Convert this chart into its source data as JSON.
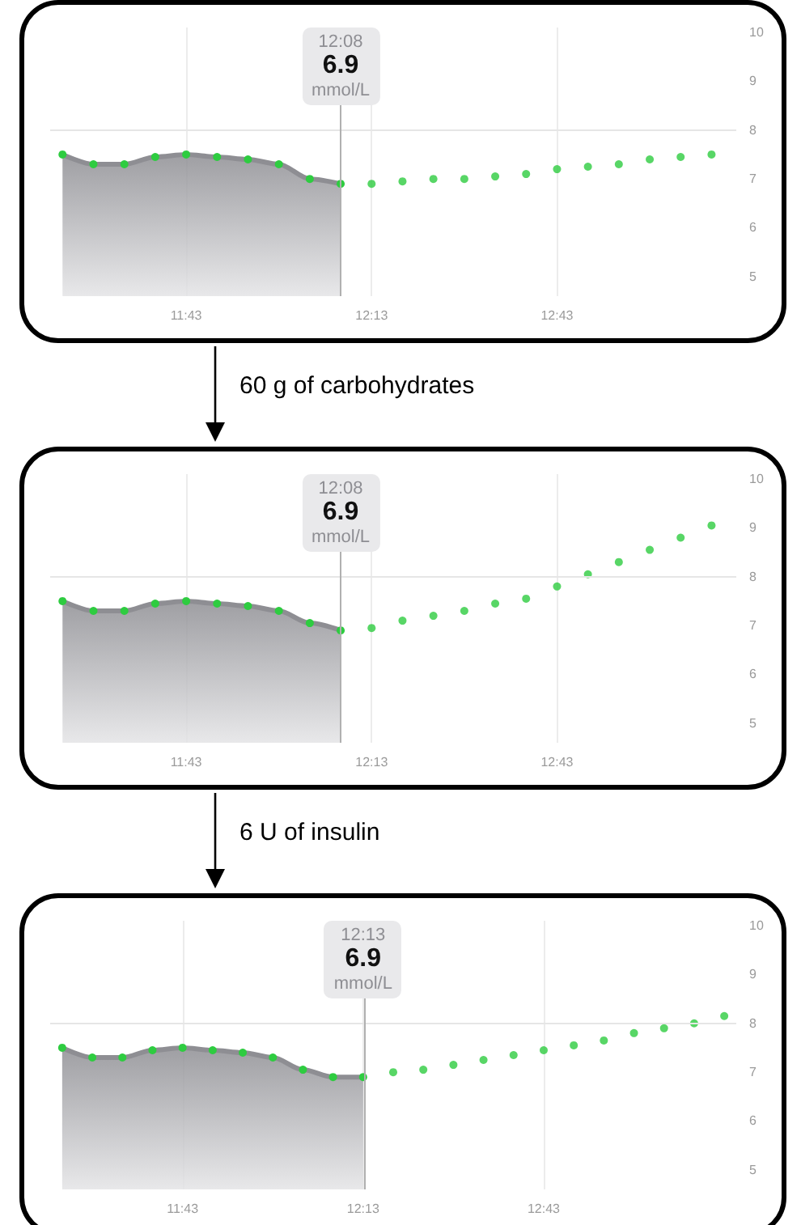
{
  "chart_data": [
    {
      "type": "area",
      "xlim": [
        11.35,
        13.2
      ],
      "ylim": [
        4.6,
        10.1
      ],
      "xticks": [
        {
          "value": 11.7167,
          "label": "11:43"
        },
        {
          "value": 12.2167,
          "label": "12:13"
        },
        {
          "value": 12.7167,
          "label": "12:43"
        }
      ],
      "yticks": [
        5,
        6,
        7,
        8,
        9,
        10
      ],
      "grid": "x",
      "marker": "circle",
      "series": [
        {
          "color": "#8e8e93",
          "x": [
            11.3833,
            11.4667,
            11.55,
            11.6333,
            11.7167,
            11.8,
            11.8833,
            11.9667,
            12.05,
            12.1333
          ],
          "values": [
            7.5,
            7.3,
            7.3,
            7.45,
            7.5,
            7.45,
            7.4,
            7.3,
            7.0,
            6.9
          ],
          "colors": [
            "#2ecc40",
            "#2ecc40",
            "#2ecc40",
            "#2ecc40",
            "#2ecc40",
            "#2ecc40",
            "#2ecc40",
            "#2ecc40",
            "#2ecc40",
            "#2ecc40"
          ]
        },
        {
          "type": "scatter",
          "color": "#2ecc40",
          "x": [
            12.2167,
            12.3,
            12.3833,
            12.4667,
            12.55,
            12.6333,
            12.7167,
            12.8,
            12.8833,
            12.9667,
            13.05,
            13.1333
          ],
          "values": [
            6.9,
            6.95,
            7.0,
            7.0,
            7.05,
            7.1,
            7.2,
            7.25,
            7.3,
            7.4,
            7.45,
            7.5
          ]
        }
      ],
      "ref_lines": [
        {
          "axis": "y",
          "value": 8,
          "color": "#e6e6e6"
        },
        {
          "axis": "x",
          "value": 12.1333,
          "color": "#b0b0b0"
        }
      ],
      "annotations": [
        "12:08\n6.9\nmmol/L",
        "60 g of carbohydrates"
      ]
    },
    {
      "type": "area",
      "xlim": [
        11.35,
        13.2
      ],
      "ylim": [
        4.6,
        10.1
      ],
      "xticks": [
        {
          "value": 11.7167,
          "label": "11:43"
        },
        {
          "value": 12.2167,
          "label": "12:13"
        },
        {
          "value": 12.7167,
          "label": "12:43"
        }
      ],
      "yticks": [
        5,
        6,
        7,
        8,
        9,
        10
      ],
      "grid": "x",
      "marker": "circle",
      "series": [
        {
          "color": "#8e8e93",
          "x": [
            11.3833,
            11.4667,
            11.55,
            11.6333,
            11.7167,
            11.8,
            11.8833,
            11.9667,
            12.05,
            12.1333
          ],
          "values": [
            7.5,
            7.3,
            7.3,
            7.45,
            7.5,
            7.45,
            7.4,
            7.3,
            7.05,
            6.9
          ],
          "colors": [
            "#2ecc40",
            "#2ecc40",
            "#2ecc40",
            "#2ecc40",
            "#2ecc40",
            "#2ecc40",
            "#2ecc40",
            "#2ecc40",
            "#2ecc40",
            "#2ecc40"
          ]
        },
        {
          "type": "scatter",
          "color": "#2ecc40",
          "x": [
            12.2167,
            12.3,
            12.3833,
            12.4667,
            12.55,
            12.6333,
            12.7167,
            12.8,
            12.8833,
            12.9667,
            13.05,
            13.1333
          ],
          "values": [
            6.95,
            7.1,
            7.2,
            7.3,
            7.45,
            7.55,
            7.8,
            8.05,
            8.3,
            8.55,
            8.8,
            9.05
          ]
        }
      ],
      "ref_lines": [
        {
          "axis": "y",
          "value": 8,
          "color": "#e6e6e6"
        },
        {
          "axis": "x",
          "value": 12.1333,
          "color": "#b0b0b0"
        }
      ],
      "annotations": [
        "12:08\n6.9\nmmol/L",
        "6 U of insulin"
      ]
    },
    {
      "type": "area",
      "xlim": [
        11.35,
        13.25
      ],
      "ylim": [
        4.6,
        10.1
      ],
      "xticks": [
        {
          "value": 11.7167,
          "label": "11:43"
        },
        {
          "value": 12.2167,
          "label": "12:13"
        },
        {
          "value": 12.7167,
          "label": "12:43"
        }
      ],
      "yticks": [
        5,
        6,
        7,
        8,
        9,
        10
      ],
      "grid": "x",
      "marker": "circle",
      "series": [
        {
          "color": "#8e8e93",
          "x": [
            11.3833,
            11.4667,
            11.55,
            11.6333,
            11.7167,
            11.8,
            11.8833,
            11.9667,
            12.05,
            12.1333,
            12.2167
          ],
          "values": [
            7.5,
            7.3,
            7.3,
            7.45,
            7.5,
            7.45,
            7.4,
            7.3,
            7.05,
            6.9,
            6.9
          ],
          "colors": [
            "#2ecc40",
            "#2ecc40",
            "#2ecc40",
            "#2ecc40",
            "#2ecc40",
            "#2ecc40",
            "#2ecc40",
            "#2ecc40",
            "#2ecc40",
            "#2ecc40",
            "#2ecc40"
          ]
        },
        {
          "type": "scatter",
          "color": "#2ecc40",
          "x": [
            12.3,
            12.3833,
            12.4667,
            12.55,
            12.6333,
            12.7167,
            12.8,
            12.8833,
            12.9667,
            13.05,
            13.1333,
            13.2167
          ],
          "values": [
            7.0,
            7.05,
            7.15,
            7.25,
            7.35,
            7.45,
            7.55,
            7.65,
            7.8,
            7.9,
            8.0,
            8.15
          ]
        }
      ],
      "ref_lines": [
        {
          "axis": "y",
          "value": 8,
          "color": "#e6e6e6"
        },
        {
          "axis": "x",
          "value": 12.2167,
          "color": "#b0b0b0"
        }
      ],
      "annotations": [
        "12:13\n6.9\nmmol/L"
      ]
    }
  ]
}
